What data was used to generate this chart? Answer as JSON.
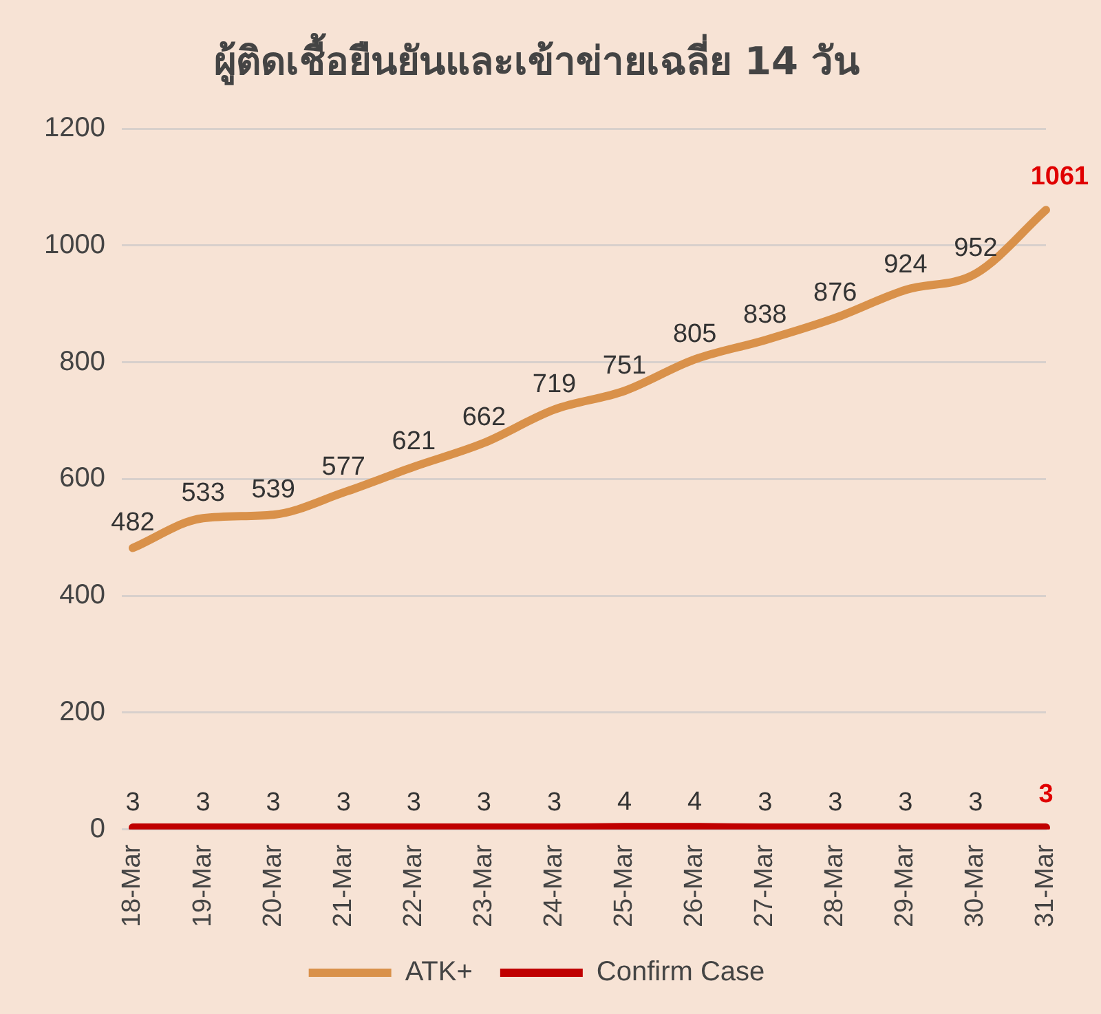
{
  "chart_data": {
    "type": "line",
    "title": "ผู้ติดเชื้อยืนยันและเข้าข่ายเฉลี่ย 14 วัน",
    "categories": [
      "18-Mar",
      "19-Mar",
      "20-Mar",
      "21-Mar",
      "22-Mar",
      "23-Mar",
      "24-Mar",
      "25-Mar",
      "26-Mar",
      "27-Mar",
      "28-Mar",
      "29-Mar",
      "30-Mar",
      "31-Mar"
    ],
    "series": [
      {
        "name": "ATK+",
        "color": "#d9914a",
        "values": [
          482,
          533,
          539,
          577,
          621,
          662,
          719,
          751,
          805,
          838,
          876,
          924,
          952,
          1061
        ]
      },
      {
        "name": "Confirm Case",
        "color": "#c00000",
        "values": [
          3,
          3,
          3,
          3,
          3,
          3,
          3,
          4,
          4,
          3,
          3,
          3,
          3,
          3
        ]
      }
    ],
    "ylim": [
      0,
      1200
    ],
    "yticks": [
      0,
      200,
      400,
      600,
      800,
      1000,
      1200
    ],
    "grid": "y",
    "legend": "bottom",
    "marker": "none",
    "line_style": "solid",
    "data_labels": true
  }
}
